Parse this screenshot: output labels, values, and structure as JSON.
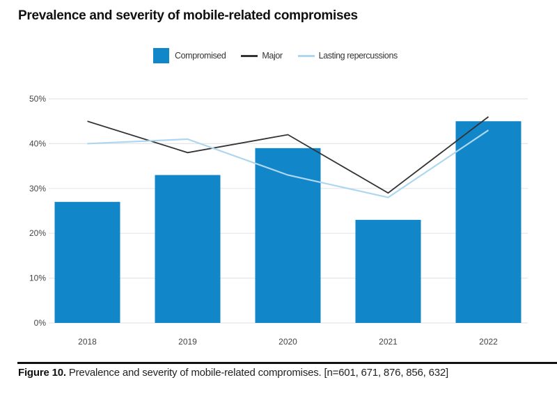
{
  "chart_data": {
    "type": "bar",
    "title": "Prevalence and severity of mobile-related compromises",
    "categories": [
      "2018",
      "2019",
      "2020",
      "2021",
      "2022"
    ],
    "series": [
      {
        "name": "Compromised",
        "kind": "bar",
        "color": "#1186c9",
        "values": [
          27,
          33,
          39,
          23,
          45
        ]
      },
      {
        "name": "Major",
        "kind": "line",
        "color": "#333333",
        "values": [
          45,
          38,
          42,
          29,
          46
        ]
      },
      {
        "name": "Lasting repercussions",
        "kind": "line",
        "color": "#aed7ef",
        "values": [
          40,
          41,
          33,
          28,
          43
        ]
      }
    ],
    "xlabel": "",
    "ylabel": "",
    "ylim": [
      0,
      50
    ],
    "yticks": [
      0,
      10,
      20,
      30,
      40,
      50
    ],
    "ytick_labels": [
      "0%",
      "10%",
      "20%",
      "30%",
      "40%",
      "50%"
    ],
    "grid": true,
    "legend": "top-center"
  },
  "legend": {
    "items": [
      {
        "label": "Compromised",
        "color": "#1186c9"
      },
      {
        "label": "Major",
        "color": "#333333"
      },
      {
        "label": "Lasting repercussions",
        "color": "#aed7ef"
      }
    ]
  },
  "caption": {
    "figure_label": "Figure 10.",
    "text": " Prevalence and severity of mobile-related compromises. [n=601, 671, 876, 856, 632]"
  }
}
